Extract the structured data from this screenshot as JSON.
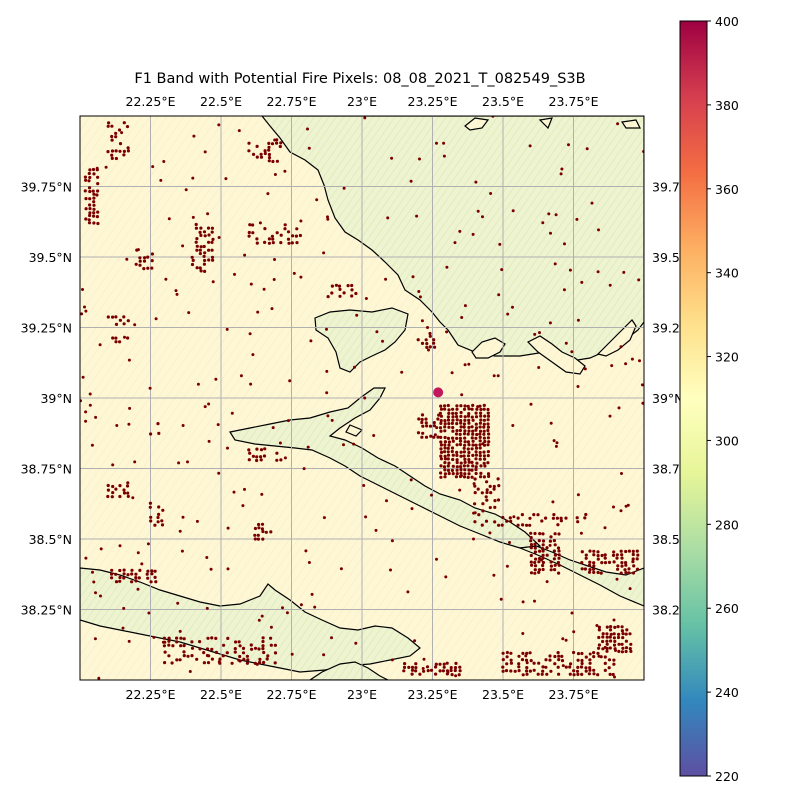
{
  "figure": {
    "title": "F1 Band with Potential Fire Pixels: 08_08_2021_T_082549_S3B"
  },
  "map": {
    "lon_range": [
      22.0,
      24.0
    ],
    "lat_range": [
      38.0,
      40.0
    ],
    "grid": true,
    "lon_ticks": [
      {
        "value": 22.25,
        "label": "22.25°E"
      },
      {
        "value": 22.5,
        "label": "22.5°E"
      },
      {
        "value": 22.75,
        "label": "22.75°E"
      },
      {
        "value": 23.0,
        "label": "23°E"
      },
      {
        "value": 23.25,
        "label": "23.25°E"
      },
      {
        "value": 23.5,
        "label": "23.5°E"
      },
      {
        "value": 23.75,
        "label": "23.75°E"
      }
    ],
    "lat_ticks": [
      {
        "value": 39.75,
        "label": "39.75°N",
        "right_label": "39.7"
      },
      {
        "value": 39.5,
        "label": "39.5°N",
        "right_label": "39.5"
      },
      {
        "value": 39.25,
        "label": "39.25°N",
        "right_label": "39.2"
      },
      {
        "value": 39.0,
        "label": "39°N",
        "right_label": "39°N"
      },
      {
        "value": 38.75,
        "label": "38.75°N",
        "right_label": "38.7"
      },
      {
        "value": 38.5,
        "label": "38.5°N",
        "right_label": "38.5"
      },
      {
        "value": 38.25,
        "label": "38.25°N",
        "right_label": "38.2"
      }
    ],
    "colors": {
      "land": "#fef7d6",
      "sea": "#eef3d2",
      "coastline": "#000000",
      "gridline": "#b0b0b0",
      "fire_pixel": "#7a0000"
    },
    "fire_clusters": [
      {
        "lon": [
          22.02,
          22.07
        ],
        "lat": [
          39.62,
          39.82
        ],
        "density": 0.55
      },
      {
        "lon": [
          22.1,
          22.18
        ],
        "lat": [
          39.85,
          39.98
        ],
        "density": 0.35
      },
      {
        "lon": [
          22.2,
          22.26
        ],
        "lat": [
          39.46,
          39.53
        ],
        "density": 0.5
      },
      {
        "lon": [
          22.4,
          22.47
        ],
        "lat": [
          39.45,
          39.62
        ],
        "density": 0.45
      },
      {
        "lon": [
          22.1,
          22.18
        ],
        "lat": [
          39.2,
          39.3
        ],
        "density": 0.3
      },
      {
        "lon": [
          22.25,
          22.32
        ],
        "lat": [
          38.86,
          38.92
        ],
        "density": 0.2
      },
      {
        "lon": [
          22.1,
          22.17
        ],
        "lat": [
          38.65,
          38.72
        ],
        "density": 0.5
      },
      {
        "lon": [
          22.25,
          22.3
        ],
        "lat": [
          38.55,
          38.63
        ],
        "density": 0.45
      },
      {
        "lon": [
          22.1,
          22.28
        ],
        "lat": [
          38.35,
          38.4
        ],
        "density": 0.5
      },
      {
        "lon": [
          22.62,
          22.68
        ],
        "lat": [
          38.5,
          38.56
        ],
        "density": 0.5
      },
      {
        "lon": [
          22.6,
          22.72
        ],
        "lat": [
          38.78,
          38.83
        ],
        "density": 0.45
      },
      {
        "lon": [
          22.88,
          22.98
        ],
        "lat": [
          39.36,
          39.4
        ],
        "density": 0.45
      },
      {
        "lon": [
          23.2,
          23.26
        ],
        "lat": [
          39.18,
          39.24
        ],
        "density": 0.45
      },
      {
        "lon": [
          23.2,
          23.28
        ],
        "lat": [
          38.85,
          38.94
        ],
        "density": 0.4
      },
      {
        "lon": [
          23.28,
          23.46
        ],
        "lat": [
          38.72,
          38.98
        ],
        "density": 0.85
      },
      {
        "lon": [
          23.4,
          23.5
        ],
        "lat": [
          38.6,
          38.72
        ],
        "density": 0.3
      },
      {
        "lon": [
          23.6,
          23.7
        ],
        "lat": [
          38.38,
          38.52
        ],
        "density": 0.55
      },
      {
        "lon": [
          23.78,
          23.98
        ],
        "lat": [
          38.38,
          38.46
        ],
        "density": 0.6
      },
      {
        "lon": [
          23.84,
          23.96
        ],
        "lat": [
          38.1,
          38.2
        ],
        "density": 0.75
      },
      {
        "lon": [
          23.5,
          23.9
        ],
        "lat": [
          38.02,
          38.1
        ],
        "density": 0.5
      },
      {
        "lon": [
          23.15,
          23.35
        ],
        "lat": [
          38.02,
          38.06
        ],
        "density": 0.55
      },
      {
        "lon": [
          22.3,
          22.7
        ],
        "lat": [
          38.06,
          38.15
        ],
        "density": 0.3
      },
      {
        "lon": [
          22.6,
          22.8
        ],
        "lat": [
          39.55,
          39.62
        ],
        "density": 0.3
      },
      {
        "lon": [
          22.6,
          22.72
        ],
        "lat": [
          39.84,
          39.92
        ],
        "density": 0.35
      },
      {
        "lon": [
          23.4,
          23.8
        ],
        "lat": [
          38.55,
          38.6
        ],
        "density": 0.25
      }
    ],
    "fire_scatter_count": 320,
    "hotspot": {
      "lon": 23.27,
      "lat": 39.02,
      "color": "#c2185b"
    }
  },
  "colorbar": {
    "min": 220,
    "max": 400,
    "ticks": [
      {
        "value": 400,
        "label": "400"
      },
      {
        "value": 380,
        "label": "380"
      },
      {
        "value": 360,
        "label": "360"
      },
      {
        "value": 340,
        "label": "340"
      },
      {
        "value": 320,
        "label": "320"
      },
      {
        "value": 300,
        "label": "300"
      },
      {
        "value": 280,
        "label": "280"
      },
      {
        "value": 260,
        "label": "260"
      },
      {
        "value": 240,
        "label": "240"
      },
      {
        "value": 220,
        "label": "220"
      }
    ],
    "colormap": "Spectral_r",
    "stops": [
      "#5e4fa2",
      "#3288bd",
      "#66c2a5",
      "#abdda4",
      "#e6f598",
      "#ffffbf",
      "#fee08b",
      "#fdae61",
      "#f46d43",
      "#d53e4f",
      "#9e0142"
    ]
  }
}
